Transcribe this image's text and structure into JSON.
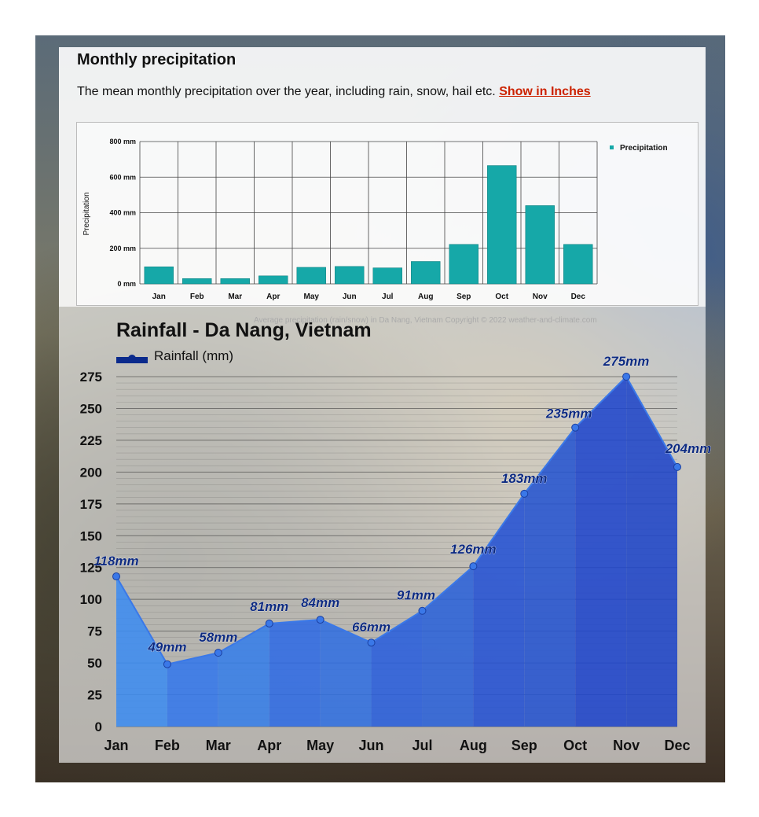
{
  "header": {
    "title": "Monthly precipitation",
    "description": "The mean monthly precipitation over the year, including rain, snow, hail etc.",
    "link_label": "Show in Inches"
  },
  "credit": "Average precipitation (rain/snow) in Da Nang, Vietnam   Copyright © 2022  weather-and-climate.com",
  "colors": {
    "top_bars": "#16a8a8",
    "rain_area_light": "#3d8cf0",
    "rain_area_dark": "#1d50c8",
    "rain_line": "#0b2a8c"
  },
  "chart_data": [
    {
      "type": "bar",
      "title": "",
      "ylabel": "Precipitation",
      "categories": [
        "Jan",
        "Feb",
        "Mar",
        "Apr",
        "May",
        "Jun",
        "Jul",
        "Aug",
        "Sep",
        "Oct",
        "Nov",
        "Dec"
      ],
      "series": [
        {
          "name": "Precipitation",
          "values": [
            96,
            30,
            30,
            45,
            93,
            98,
            90,
            126,
            222,
            665,
            440,
            222
          ]
        }
      ],
      "ylim": [
        0,
        800
      ],
      "yticks": [
        0,
        200,
        400,
        600,
        800
      ],
      "ytick_labels": [
        "0 mm",
        "200 mm",
        "400 mm",
        "600 mm",
        "800 mm"
      ],
      "grid": true,
      "legend": "top-right"
    },
    {
      "type": "area",
      "title": "Rainfall - Da Nang, Vietnam",
      "categories": [
        "Jan",
        "Feb",
        "Mar",
        "Apr",
        "May",
        "Jun",
        "Jul",
        "Aug",
        "Sep",
        "Oct",
        "Nov",
        "Dec"
      ],
      "series": [
        {
          "name": "Rainfall (mm)",
          "values": [
            118,
            49,
            58,
            81,
            84,
            66,
            91,
            126,
            183,
            235,
            275,
            204
          ]
        }
      ],
      "data_labels": [
        "118mm",
        "49mm",
        "58mm",
        "81mm",
        "84mm",
        "66mm",
        "91mm",
        "126mm",
        "183mm",
        "235mm",
        "275mm",
        "204mm"
      ],
      "ylim": [
        0,
        275
      ],
      "yticks": [
        0,
        25,
        50,
        75,
        100,
        125,
        150,
        175,
        200,
        225,
        250,
        275
      ],
      "grid": true,
      "legend": "top-left"
    }
  ]
}
